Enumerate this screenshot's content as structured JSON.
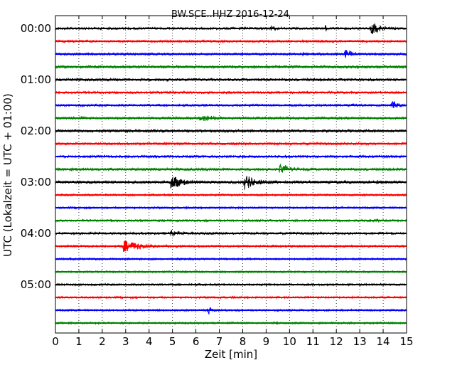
{
  "chart_data": {
    "type": "line",
    "title": "BW.SCE..HHZ 2016-12-24",
    "xlabel": "Zeit  [min]",
    "ylabel": "UTC (Lokalzeit = UTC + 01:00)",
    "xlim": [
      0,
      15
    ],
    "x_ticks": [
      0,
      1,
      2,
      3,
      4,
      5,
      6,
      7,
      8,
      9,
      10,
      11,
      12,
      13,
      14,
      15
    ],
    "x_tick_labels": [
      "0",
      "1",
      "2",
      "3",
      "4",
      "5",
      "6",
      "7",
      "8",
      "9",
      "10",
      "11",
      "12",
      "13",
      "14",
      "15"
    ],
    "y_tick_labels": [
      "00:00",
      "01:00",
      "02:00",
      "03:00",
      "04:00",
      "05:00"
    ],
    "traces_per_hour": 4,
    "grid": "vertical-dotted",
    "color_cycle": [
      "#000000",
      "#ff0000",
      "#0000ff",
      "#008000"
    ],
    "traces": [
      {
        "start": "00:00",
        "color": "#000000",
        "noise": 1.2,
        "events": [
          {
            "t": 9.2,
            "amp": 3,
            "dur": 0.45
          },
          {
            "t": 11.55,
            "amp": 6,
            "dur": 0.12
          },
          {
            "t": 13.5,
            "amp": 10,
            "dur": 0.55
          }
        ]
      },
      {
        "start": "00:15",
        "color": "#ff0000",
        "noise": 1.2,
        "events": []
      },
      {
        "start": "00:30",
        "color": "#0000ff",
        "noise": 1.3,
        "events": [
          {
            "t": 8.0,
            "amp": 2.5,
            "dur": 0.08
          },
          {
            "t": 10.6,
            "amp": 3.5,
            "dur": 0.08
          },
          {
            "t": 12.4,
            "amp": 8,
            "dur": 0.45
          }
        ]
      },
      {
        "start": "00:45",
        "color": "#008000",
        "noise": 1.5,
        "events": []
      },
      {
        "start": "01:00",
        "color": "#000000",
        "noise": 1.5,
        "events": []
      },
      {
        "start": "01:15",
        "color": "#ff0000",
        "noise": 1.2,
        "events": []
      },
      {
        "start": "01:30",
        "color": "#0000ff",
        "noise": 1.2,
        "events": [
          {
            "t": 12.7,
            "amp": 3.5,
            "dur": 0.1
          },
          {
            "t": 14.4,
            "amp": 6.5,
            "dur": 0.4
          }
        ]
      },
      {
        "start": "01:45",
        "color": "#008000",
        "noise": 1.4,
        "events": [
          {
            "t": 6.2,
            "amp": 5,
            "dur": 0.8
          }
        ]
      },
      {
        "start": "02:00",
        "color": "#000000",
        "noise": 1.5,
        "events": []
      },
      {
        "start": "02:15",
        "color": "#ff0000",
        "noise": 1.3,
        "events": []
      },
      {
        "start": "02:30",
        "color": "#0000ff",
        "noise": 1.3,
        "events": []
      },
      {
        "start": "02:45",
        "color": "#008000",
        "noise": 1.5,
        "events": [
          {
            "t": 9.6,
            "amp": 9,
            "dur": 0.55
          }
        ]
      },
      {
        "start": "03:00",
        "color": "#000000",
        "noise": 1.6,
        "events": [
          {
            "t": 4.95,
            "amp": 11,
            "dur": 0.7
          },
          {
            "t": 8.1,
            "amp": 13,
            "dur": 0.7
          },
          {
            "t": 13.7,
            "amp": 2.5,
            "dur": 0.5
          }
        ]
      },
      {
        "start": "03:15",
        "color": "#ff0000",
        "noise": 1.1,
        "events": []
      },
      {
        "start": "03:30",
        "color": "#0000ff",
        "noise": 1.0,
        "events": []
      },
      {
        "start": "03:45",
        "color": "#008000",
        "noise": 1.1,
        "events": [
          {
            "t": 13.7,
            "amp": 2,
            "dur": 0.3
          }
        ]
      },
      {
        "start": "04:00",
        "color": "#000000",
        "noise": 1.2,
        "events": [
          {
            "t": 4.95,
            "amp": 4.5,
            "dur": 0.7
          }
        ]
      },
      {
        "start": "04:15",
        "color": "#ff0000",
        "noise": 1.1,
        "events": [
          {
            "t": 2.9,
            "amp": 9,
            "dur": 1.2
          }
        ]
      },
      {
        "start": "04:30",
        "color": "#0000ff",
        "noise": 1.0,
        "events": []
      },
      {
        "start": "04:45",
        "color": "#008000",
        "noise": 1.0,
        "events": []
      },
      {
        "start": "05:00",
        "color": "#000000",
        "noise": 1.0,
        "events": []
      },
      {
        "start": "05:15",
        "color": "#ff0000",
        "noise": 1.0,
        "events": []
      },
      {
        "start": "05:30",
        "color": "#0000ff",
        "noise": 1.0,
        "events": [
          {
            "t": 6.55,
            "amp": 6,
            "dur": 0.25
          }
        ]
      },
      {
        "start": "05:45",
        "color": "#008000",
        "noise": 1.0,
        "events": []
      }
    ]
  }
}
